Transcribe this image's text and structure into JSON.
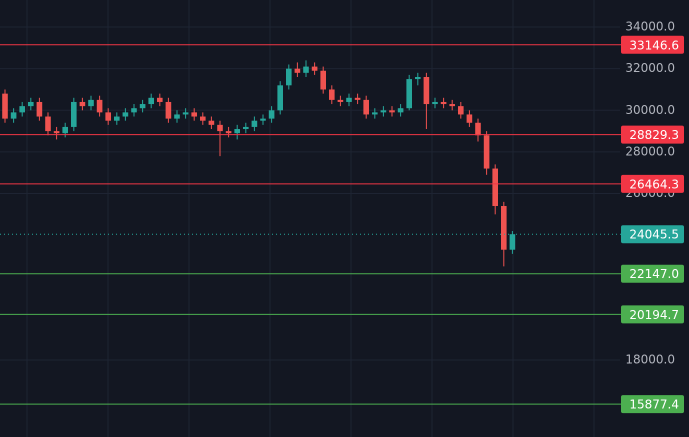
{
  "chart_data": {
    "type": "candlestick",
    "up_color": "#26a69a",
    "down_color": "#ef5350",
    "open": [
      30800,
      29600,
      29900,
      30200,
      30400,
      29700,
      29000,
      28900,
      29200,
      30400,
      30200,
      30500,
      29900,
      29500,
      29700,
      29900,
      30100,
      30300,
      30600,
      30400,
      29600,
      29800,
      29900,
      29700,
      29500,
      29300,
      29000,
      28900,
      29100,
      29200,
      29500,
      29600,
      30000,
      31200,
      32000,
      31800,
      32100,
      31900,
      31000,
      30500,
      30400,
      30600,
      30500,
      29800,
      29900,
      30000,
      29900,
      30100,
      31500,
      31600,
      30300,
      30400,
      30300,
      30200,
      29800,
      29400,
      28800,
      27200,
      25400,
      23300
    ],
    "high": [
      31000,
      30100,
      30400,
      30600,
      30600,
      29900,
      29200,
      29400,
      30600,
      30600,
      30700,
      30700,
      30100,
      29900,
      30100,
      30300,
      30500,
      30800,
      30800,
      30600,
      30000,
      30100,
      30100,
      29900,
      29700,
      29500,
      29200,
      29300,
      29400,
      29700,
      29800,
      30200,
      31400,
      32200,
      32300,
      32400,
      32300,
      32100,
      31200,
      30700,
      30800,
      30800,
      30700,
      30100,
      30200,
      30200,
      30300,
      31700,
      31800,
      31800,
      30600,
      30600,
      30500,
      30400,
      30000,
      29600,
      29000,
      27400,
      25600,
      24200
    ],
    "low": [
      29400,
      29400,
      29700,
      30000,
      29500,
      28800,
      28600,
      28700,
      29000,
      30000,
      30000,
      29700,
      29300,
      29300,
      29500,
      29700,
      29900,
      30100,
      30200,
      29400,
      29400,
      29600,
      29500,
      29300,
      29100,
      27800,
      28700,
      28600,
      28900,
      29000,
      29300,
      29400,
      29800,
      31000,
      31600,
      31600,
      31700,
      30800,
      30300,
      30200,
      30200,
      30300,
      29600,
      29600,
      29700,
      29700,
      29700,
      30000,
      31200,
      29100,
      30100,
      30100,
      30000,
      29600,
      29200,
      28500,
      26900,
      25000,
      22500,
      23100
    ],
    "close": [
      29600,
      29900,
      30200,
      30400,
      29700,
      29000,
      28900,
      29200,
      30400,
      30200,
      30500,
      29900,
      29500,
      29700,
      29900,
      30100,
      30300,
      30600,
      30400,
      29600,
      29800,
      29900,
      29700,
      29500,
      29300,
      29000,
      28900,
      29100,
      29200,
      29500,
      29600,
      30000,
      31200,
      32000,
      31800,
      32100,
      31900,
      31000,
      30500,
      30400,
      30600,
      30500,
      29800,
      29900,
      30000,
      29900,
      30100,
      31500,
      31600,
      30300,
      30400,
      30300,
      30200,
      29800,
      29400,
      28800,
      27200,
      25400,
      23300,
      24045.5
    ],
    "ylim": [
      14300,
      35300
    ],
    "yticks": [
      {
        "value": 34000,
        "label": "34000.0"
      },
      {
        "value": 32000,
        "label": "32000.0"
      },
      {
        "value": 30000,
        "label": "30000.0"
      },
      {
        "value": 28000,
        "label": "28000.0"
      },
      {
        "value": 26000,
        "label": "26000.0"
      },
      {
        "value": 18000,
        "label": "18000.0"
      }
    ],
    "grid": true,
    "levels": [
      {
        "value": 33146.6,
        "color": "#f23645"
      },
      {
        "value": 28829.3,
        "color": "#f23645"
      },
      {
        "value": 26464.3,
        "color": "#f23645"
      },
      {
        "value": 24045.5,
        "color": "#26a69a",
        "style": "dotted"
      },
      {
        "value": 22147,
        "label": "22147.0",
        "color": "#4caf50"
      },
      {
        "value": 20194.7,
        "color": "#4caf50"
      },
      {
        "value": 15877.4,
        "color": "#4caf50"
      }
    ]
  }
}
